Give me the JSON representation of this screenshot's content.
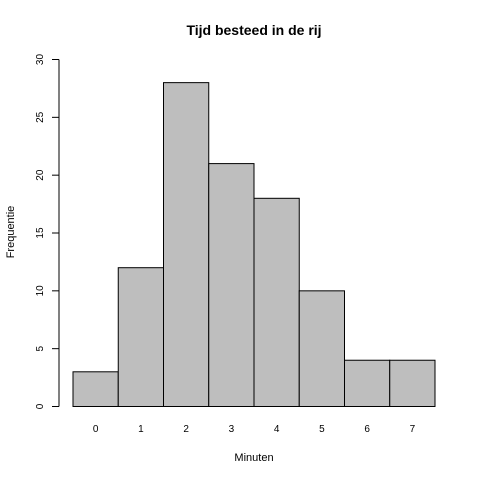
{
  "chart_data": {
    "type": "bar",
    "title": "Tijd besteed in de rij",
    "xlabel": "Minuten",
    "ylabel": "Frequentie",
    "categories": [
      "0",
      "1",
      "2",
      "3",
      "4",
      "5",
      "6",
      "7"
    ],
    "values": [
      3,
      12,
      28,
      21,
      18,
      10,
      4,
      4
    ],
    "ylim": [
      0,
      30
    ],
    "yticks": [
      0,
      5,
      10,
      15,
      20,
      25,
      30
    ],
    "grid": false,
    "bar_color": "#bebebe",
    "edge_color": "#000000"
  }
}
